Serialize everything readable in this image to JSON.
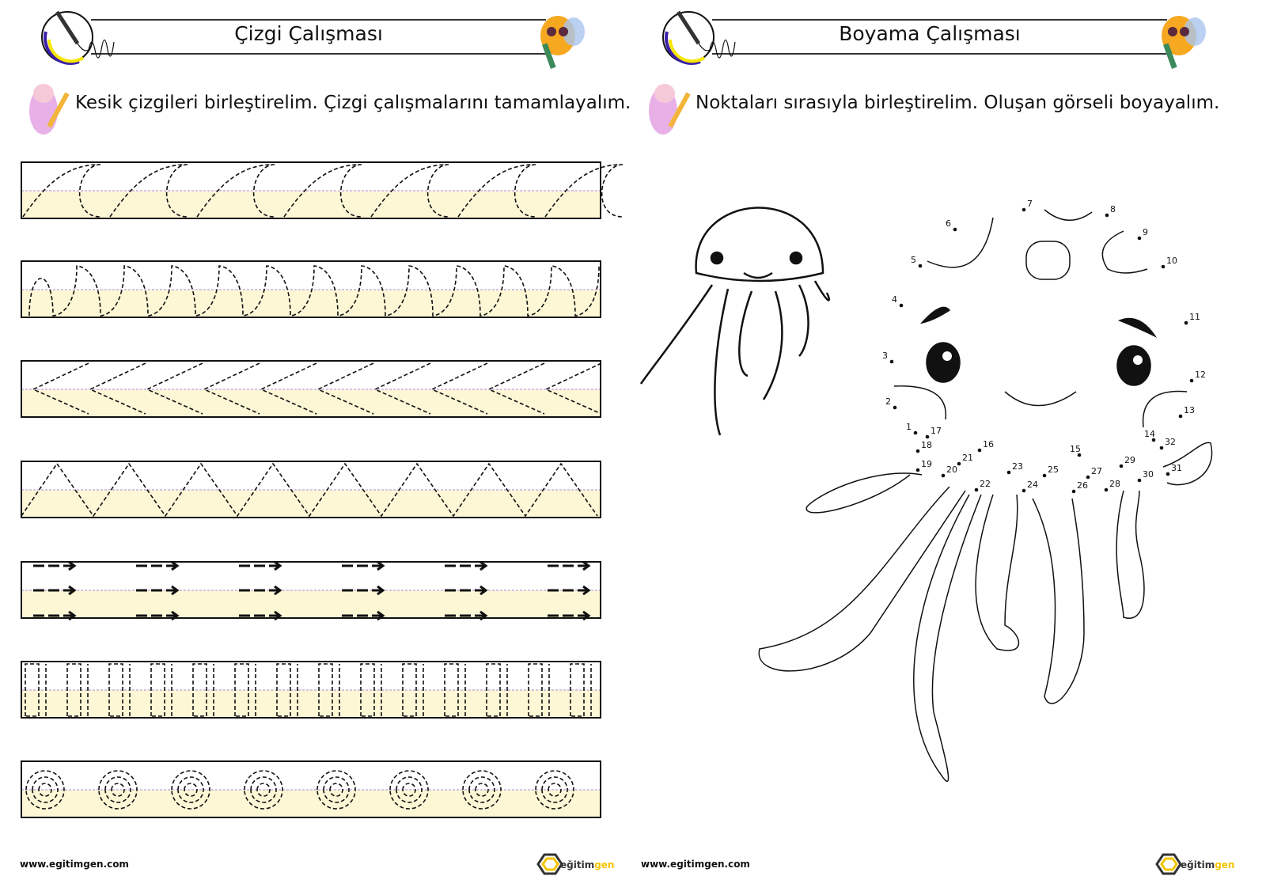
{
  "left_page": {
    "title": "Çizgi Çalışması",
    "instruction": "Kesik çizgileri birleştirelim. Çizgi çalışmalarını tamamlayalım.",
    "worksheet_strips": [
      "loops",
      "waves",
      "chevrons",
      "zigzag",
      "arrows",
      "rectangles",
      "spirals"
    ],
    "footer_url": "www.egitimgen.com",
    "logo": {
      "a": "eğitim",
      "b": "gen"
    }
  },
  "right_page": {
    "title": "Boyama Çalışması",
    "instruction": "Noktaları sırasıyla birleştirelim. Oluşan görseli boyayalım.",
    "dot_labels": [
      "1",
      "2",
      "3",
      "4",
      "5",
      "6",
      "7",
      "8",
      "9",
      "10",
      "11",
      "12",
      "13",
      "14",
      "15",
      "16",
      "17",
      "18",
      "19",
      "20",
      "21",
      "22",
      "23",
      "24",
      "25",
      "26",
      "27",
      "28",
      "29",
      "30",
      "31",
      "32"
    ],
    "footer_url": "www.egitimgen.com",
    "logo": {
      "a": "eğitim",
      "b": "gen"
    }
  },
  "colors": {
    "strip_fill": "#fdf7d6",
    "midline": "#a98be0",
    "accent_yellow": "#f5c400",
    "accent_purple": "#3b1fa8"
  }
}
